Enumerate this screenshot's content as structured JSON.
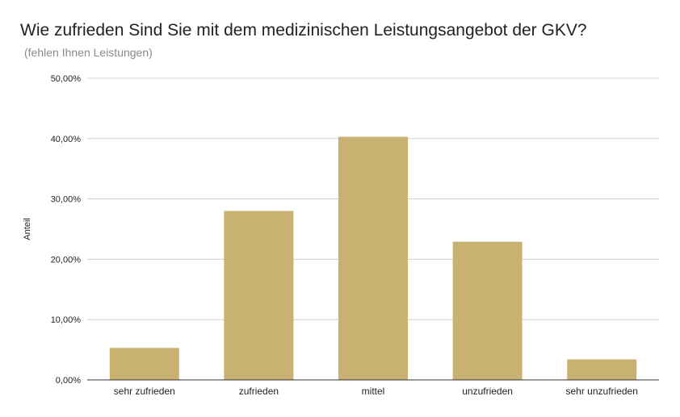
{
  "chart_data": {
    "type": "bar",
    "title": "Wie zufrieden Sind Sie mit dem medizinischen Leistungsangebot der GKV?",
    "subtitle": " (fehlen Ihnen Leistungen)",
    "xlabel": "",
    "ylabel": "Anteil",
    "categories": [
      "sehr zufrieden",
      "zufrieden",
      "mittel",
      "unzufrieden",
      "sehr unzufrieden"
    ],
    "values": [
      5.3,
      28.0,
      40.3,
      22.9,
      3.4
    ],
    "ylim": [
      0,
      50
    ],
    "yticks": [
      0,
      10,
      20,
      30,
      40,
      50
    ],
    "ytick_labels": [
      "0,00%",
      "10,00%",
      "20,00%",
      "30,00%",
      "40,00%",
      "50,00%"
    ],
    "grid": true,
    "bar_color": "#c9b271",
    "grid_color": "#d0d0d0",
    "axis_color": "#333333"
  }
}
